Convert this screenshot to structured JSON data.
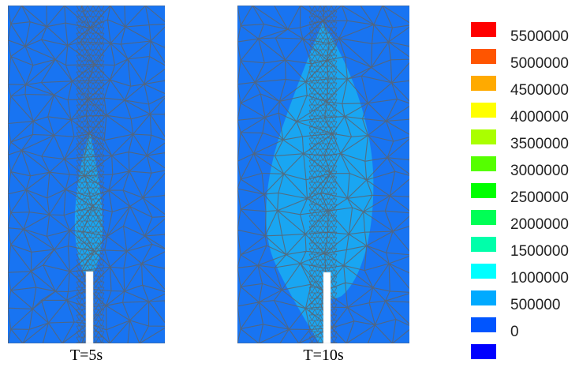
{
  "panels": [
    {
      "caption": "T=5s"
    },
    {
      "caption": "T=10s"
    }
  ],
  "legend": {
    "colors": [
      "#ff0000",
      "#ff5500",
      "#ffaa00",
      "#ffff00",
      "#aaff00",
      "#55ff00",
      "#00ff00",
      "#00ff55",
      "#00ffaa",
      "#00ffff",
      "#00aaff",
      "#0055ff",
      "#0000ff"
    ],
    "labels": [
      "5500000",
      "5000000",
      "4500000",
      "4000000",
      "3500000",
      "3000000",
      "2500000",
      "2000000",
      "1500000",
      "1000000",
      "500000",
      "0"
    ]
  },
  "colors": {
    "background_field": "#1874f2",
    "fracture_zone": "#19a6f2",
    "mesh_line": "#5a6470",
    "wellbore": "#ffffff"
  }
}
